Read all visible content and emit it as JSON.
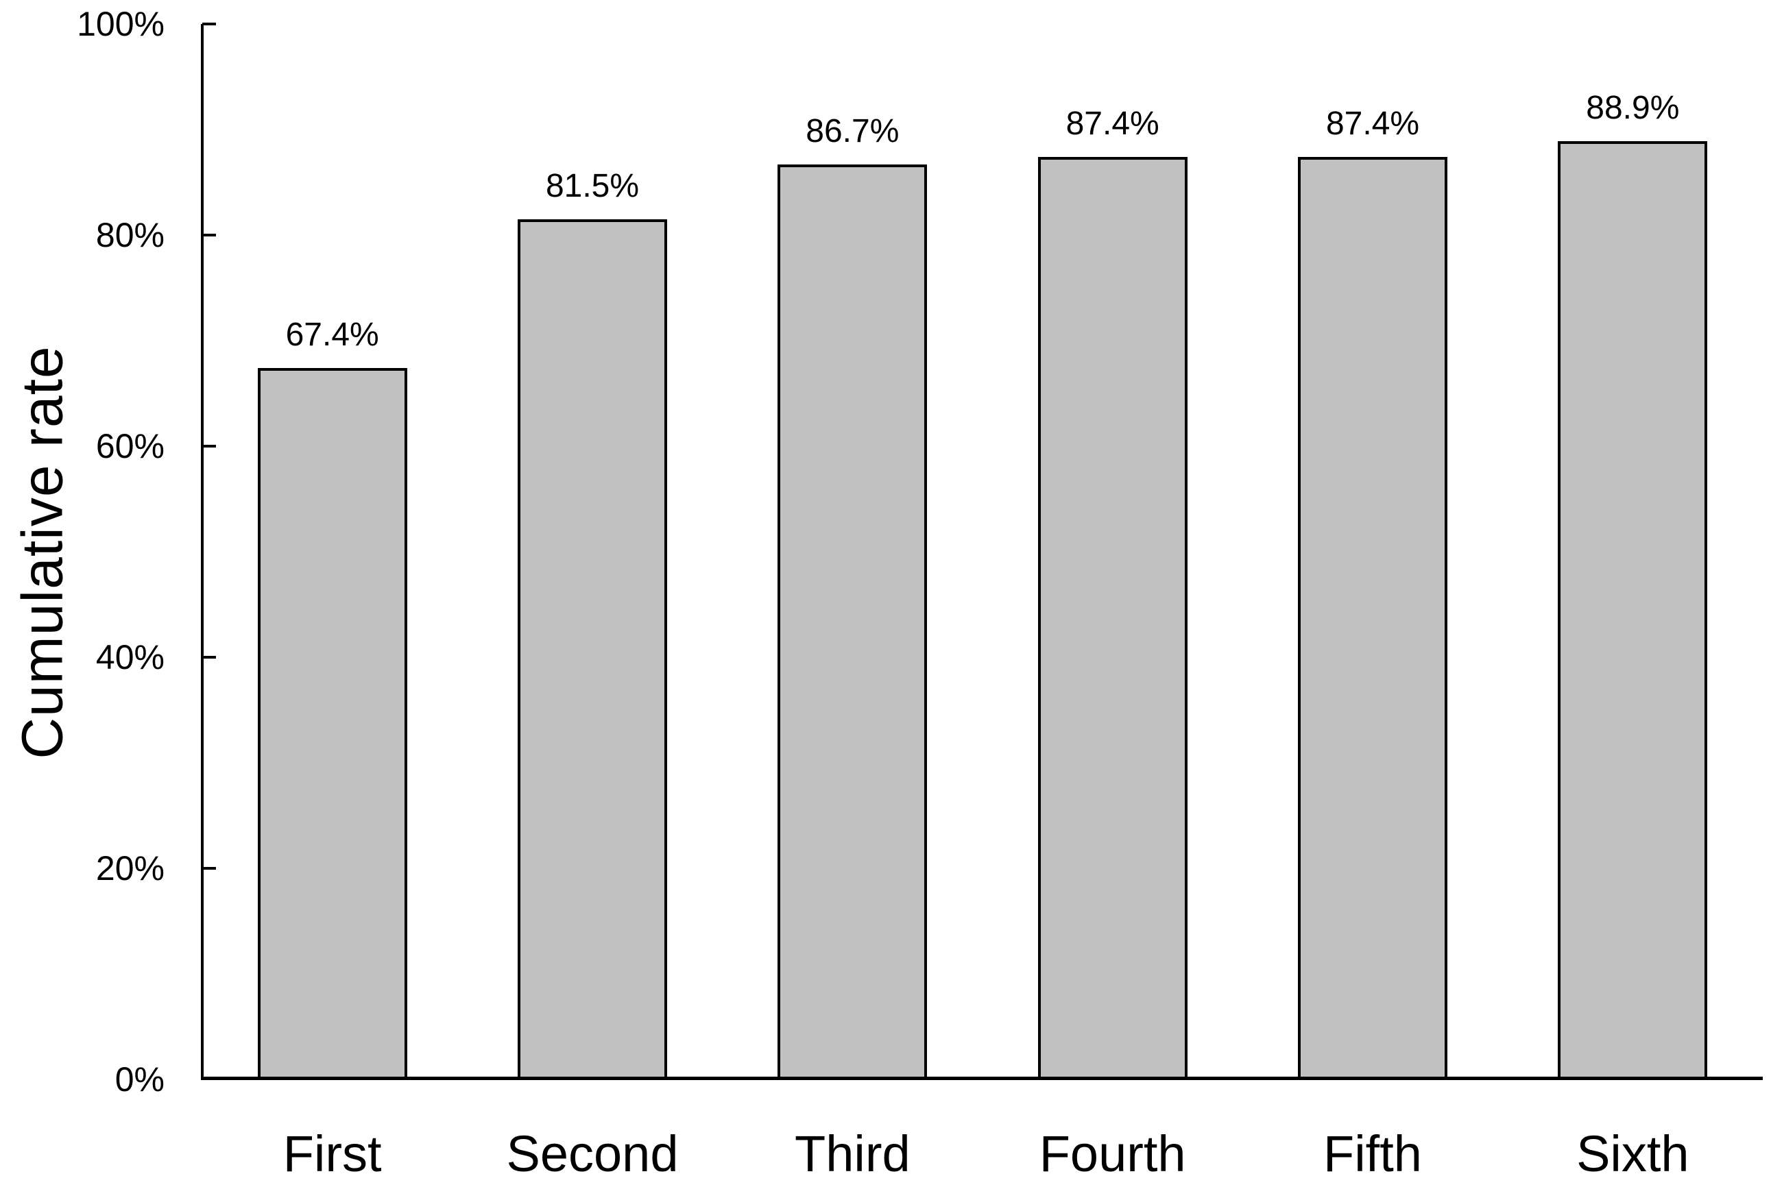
{
  "chart_data": {
    "type": "bar",
    "title": "",
    "xlabel": "",
    "ylabel": "Cumulative rate",
    "categories": [
      "First",
      "Second",
      "Third",
      "Fourth",
      "Fifth",
      "Sixth"
    ],
    "values": [
      67.4,
      81.5,
      86.7,
      87.4,
      87.4,
      88.9
    ],
    "value_labels": [
      "67.4%",
      "81.5%",
      "86.7%",
      "87.4%",
      "87.4%",
      "88.9%"
    ],
    "ylim": [
      0,
      100
    ],
    "yticks": [
      {
        "value": 0,
        "label": "0%"
      },
      {
        "value": 20,
        "label": "20%"
      },
      {
        "value": 40,
        "label": "40%"
      },
      {
        "value": 60,
        "label": "60%"
      },
      {
        "value": 80,
        "label": "80%"
      },
      {
        "value": 100,
        "label": "100%"
      }
    ],
    "grid": false,
    "legend": false,
    "tick_style": "inside",
    "colors": {
      "bar_fill": "#c1c1c1",
      "bar_border": "#000000",
      "axis": "#000000",
      "text": "#000000",
      "background": "#ffffff"
    }
  }
}
